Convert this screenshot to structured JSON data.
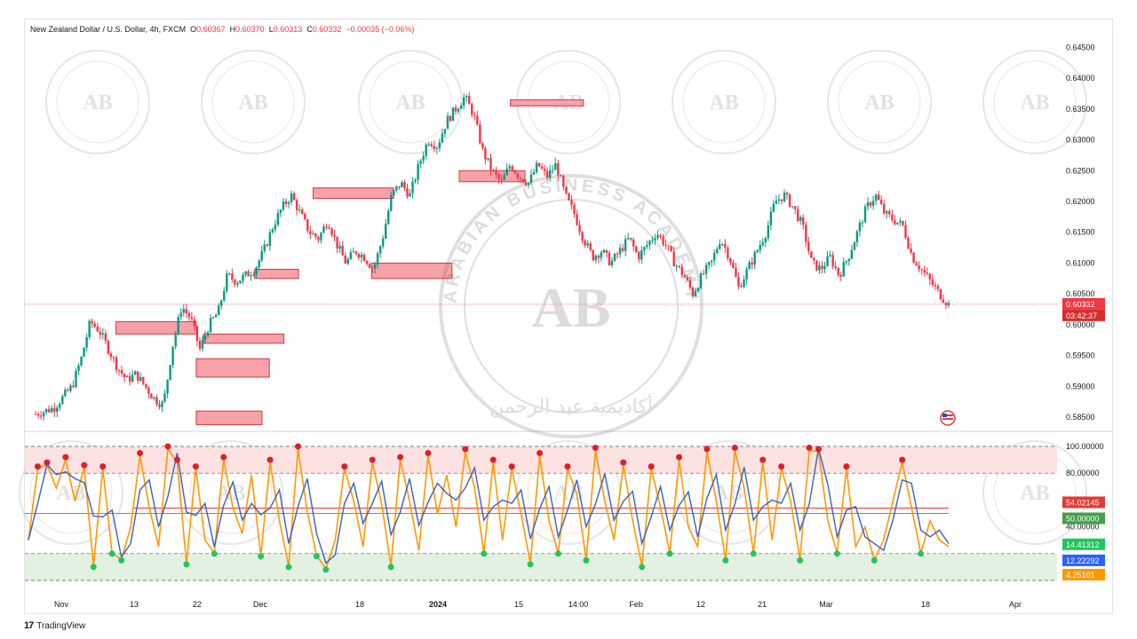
{
  "header": {
    "symbol": "New Zealand Dollar / U.S. Dollar, 4h, FXCM",
    "open_label": "O",
    "open": "0.60367",
    "high_label": "H",
    "high": "0.60370",
    "low_label": "L",
    "low": "0.60313",
    "close_label": "C",
    "close": "0.60332",
    "change": "−0.00035 (−0.06%)"
  },
  "footer": {
    "brand": "TradingView",
    "mark": "17"
  },
  "watermark": {
    "text": "ARABIAN BUSINESS ACADEMY",
    "initials": "AB",
    "arabic": "أكاديمية عبد الرحمن"
  },
  "colors": {
    "up": "#089981",
    "down": "#f23645",
    "zone_fill": "#f7a1a8",
    "zone_stroke": "#d13a48",
    "k_line": "#3b5fc0",
    "d_line": "#ff9800",
    "overbought_fill": "#fde2e2",
    "oversold_fill": "#e3f1e3",
    "red_dot": "#e01e2b",
    "green_dot": "#22c55e",
    "mid_line_green": "#4caf50",
    "mid_line_red": "#e53935"
  },
  "chart_data": [
    {
      "type": "candlestick",
      "title": "New Zealand Dollar / U.S. Dollar, 4h, FXCM",
      "ylim": [
        0.583,
        0.6475
      ],
      "y_ticks": [
        "0.64500",
        "0.64000",
        "0.63500",
        "0.63000",
        "0.62500",
        "0.62000",
        "0.61500",
        "0.61000",
        "0.60500",
        "0.60000",
        "0.59500",
        "0.59000",
        "0.58500"
      ],
      "x_ticks": [
        "Nov",
        "13",
        "22",
        "Dec",
        "18",
        "2024",
        "15",
        "14:00",
        "Feb",
        "12",
        "21",
        "Mar",
        "18",
        "Apr"
      ],
      "last_price": "0.60332",
      "countdown": "03:42:37",
      "path_index_range": [
        0,
        100
      ],
      "path": [
        [
          0,
          0.5855
        ],
        [
          2,
          0.5865
        ],
        [
          4,
          0.59
        ],
        [
          5,
          0.5945
        ],
        [
          6,
          0.6005
        ],
        [
          7,
          0.599
        ],
        [
          8,
          0.596
        ],
        [
          9,
          0.593
        ],
        [
          10,
          0.591
        ],
        [
          11,
          0.592
        ],
        [
          12,
          0.59
        ],
        [
          13,
          0.588
        ],
        [
          14,
          0.587
        ],
        [
          15,
          0.5965
        ],
        [
          16,
          0.603
        ],
        [
          17,
          0.601
        ],
        [
          18,
          0.596
        ],
        [
          19,
          0.6
        ],
        [
          20,
          0.602
        ],
        [
          21,
          0.608
        ],
        [
          22,
          0.607
        ],
        [
          23,
          0.608
        ],
        [
          24,
          0.609
        ],
        [
          25,
          0.612
        ],
        [
          26,
          0.616
        ],
        [
          27,
          0.619
        ],
        [
          28,
          0.621
        ],
        [
          29,
          0.618
        ],
        [
          30,
          0.615
        ],
        [
          31,
          0.614
        ],
        [
          32,
          0.617
        ],
        [
          33,
          0.613
        ],
        [
          34,
          0.61
        ],
        [
          35,
          0.612
        ],
        [
          36,
          0.611
        ],
        [
          37,
          0.609
        ],
        [
          38,
          0.614
        ],
        [
          39,
          0.621
        ],
        [
          40,
          0.623
        ],
        [
          41,
          0.621
        ],
        [
          42,
          0.626
        ],
        [
          43,
          0.63
        ],
        [
          44,
          0.629
        ],
        [
          45,
          0.633
        ],
        [
          46,
          0.635
        ],
        [
          47,
          0.637
        ],
        [
          48,
          0.634
        ],
        [
          49,
          0.628
        ],
        [
          50,
          0.625
        ],
        [
          51,
          0.623
        ],
        [
          52,
          0.626
        ],
        [
          53,
          0.624
        ],
        [
          54,
          0.623
        ],
        [
          55,
          0.626
        ],
        [
          56,
          0.624
        ],
        [
          57,
          0.626
        ],
        [
          58,
          0.621
        ],
        [
          59,
          0.618
        ],
        [
          60,
          0.614
        ],
        [
          61,
          0.611
        ],
        [
          62,
          0.612
        ],
        [
          63,
          0.61
        ],
        [
          64,
          0.612
        ],
        [
          65,
          0.614
        ],
        [
          66,
          0.611
        ],
        [
          67,
          0.613
        ],
        [
          68,
          0.615
        ],
        [
          69,
          0.613
        ],
        [
          70,
          0.61
        ],
        [
          71,
          0.608
        ],
        [
          72,
          0.605
        ],
        [
          73,
          0.608
        ],
        [
          74,
          0.61
        ],
        [
          75,
          0.614
        ],
        [
          76,
          0.611
        ],
        [
          77,
          0.606
        ],
        [
          78,
          0.609
        ],
        [
          79,
          0.612
        ],
        [
          80,
          0.615
        ],
        [
          81,
          0.62
        ],
        [
          82,
          0.621
        ],
        [
          83,
          0.619
        ],
        [
          84,
          0.616
        ],
        [
          85,
          0.61
        ],
        [
          86,
          0.609
        ],
        [
          87,
          0.611
        ],
        [
          88,
          0.608
        ],
        [
          89,
          0.611
        ],
        [
          90,
          0.615
        ],
        [
          91,
          0.619
        ],
        [
          92,
          0.621
        ],
        [
          93,
          0.618
        ],
        [
          94,
          0.617
        ],
        [
          95,
          0.616
        ],
        [
          96,
          0.611
        ],
        [
          97,
          0.609
        ],
        [
          98,
          0.607
        ],
        [
          99,
          0.605
        ],
        [
          100,
          0.6033
        ]
      ],
      "zones": [
        {
          "i0": 6,
          "i1": 17,
          "y0": 0.6005,
          "y1": 0.5985
        },
        {
          "i0": 17,
          "i1": 27,
          "y0": 0.5945,
          "y1": 0.5915
        },
        {
          "i0": 18,
          "i1": 29,
          "y0": 0.5985,
          "y1": 0.597
        },
        {
          "i0": 17,
          "i1": 26,
          "y0": 0.586,
          "y1": 0.5838
        },
        {
          "i0": 25,
          "i1": 31,
          "y0": 0.609,
          "y1": 0.6075
        },
        {
          "i0": 33,
          "i1": 44,
          "y0": 0.6222,
          "y1": 0.6205
        },
        {
          "i0": 41,
          "i1": 52,
          "y0": 0.61,
          "y1": 0.6075
        },
        {
          "i0": 53,
          "i1": 62,
          "y0": 0.625,
          "y1": 0.6232
        },
        {
          "i0": 60,
          "i1": 70,
          "y0": 0.6365,
          "y1": 0.6355
        }
      ]
    },
    {
      "type": "line",
      "title": "",
      "ylim": [
        0,
        100
      ],
      "y_ticks": [
        "100.00000",
        "80.00000",
        "40.00000"
      ],
      "levels": [
        100,
        80,
        50,
        20,
        0
      ],
      "values": {
        "k": "54.02145",
        "mid": "50.00000",
        "d1": "14.41312",
        "d2": "12.22292",
        "d3": "4.25101"
      },
      "oscillator_k": [
        30,
        85,
        88,
        70,
        92,
        60,
        86,
        10,
        85,
        20,
        15,
        40,
        95,
        55,
        25,
        100,
        90,
        12,
        85,
        30,
        20,
        92,
        55,
        35,
        80,
        18,
        90,
        45,
        10,
        100,
        52,
        18,
        8,
        30,
        85,
        60,
        25,
        90,
        58,
        10,
        92,
        60,
        22,
        95,
        50,
        80,
        40,
        98,
        70,
        20,
        90,
        30,
        85,
        50,
        12,
        95,
        45,
        20,
        85,
        65,
        15,
        99,
        60,
        30,
        88,
        45,
        10,
        85,
        55,
        20,
        92,
        40,
        25,
        98,
        60,
        15,
        99,
        70,
        20,
        90,
        30,
        85,
        60,
        15,
        99,
        98,
        45,
        20,
        85,
        25,
        40,
        15,
        30,
        60,
        90,
        55,
        20,
        45,
        30,
        25
      ]
    }
  ]
}
